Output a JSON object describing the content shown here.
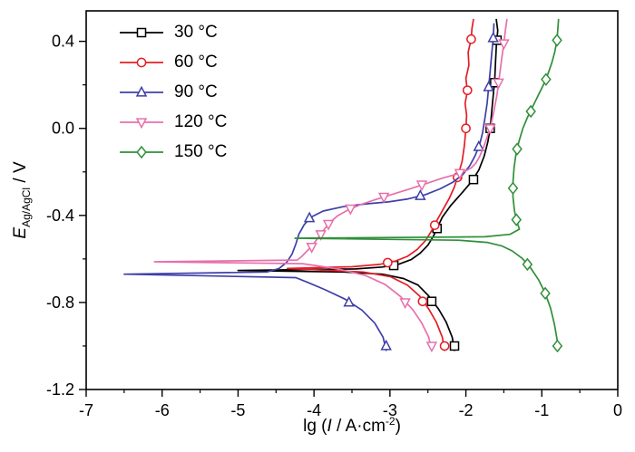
{
  "figure": {
    "background": "#ffffff",
    "frame_color": "#000000"
  },
  "chart_data": {
    "type": "line",
    "title": "",
    "xlabel": "lg (I / A·cm-2)",
    "xlabel_parts": {
      "prefix": "lg (",
      "symbol": "I",
      "mid": " / A·cm",
      "sup": "-2",
      "suffix": ")"
    },
    "ylabel": "E Ag/AgCl / V",
    "ylabel_parts": {
      "symbol": "E",
      "sub": "Ag/AgCl",
      "suffix": " / V"
    },
    "xlim": [
      -7,
      0
    ],
    "ylim": [
      -1.2,
      0.54
    ],
    "x_ticks": [
      -7,
      -6,
      -5,
      -4,
      -3,
      -2,
      -1,
      0
    ],
    "x_tick_labels": [
      "-7",
      "-6",
      "-5",
      "-4",
      "-3",
      "-2",
      "-1",
      "0"
    ],
    "y_ticks": [
      0.4,
      0.0,
      -0.4,
      -0.8,
      -1.2
    ],
    "y_tick_labels": [
      "0.4",
      "0.0",
      "-0.4",
      "-0.8",
      "-1.2"
    ],
    "x_minor_step": 0.5,
    "y_minor_step": 0.2,
    "grid": false,
    "legend_position": "top-left",
    "series": [
      {
        "name": "30 °C",
        "color": "#000000",
        "marker": "square",
        "points": [
          [
            -2.15,
            -1.02
          ],
          [
            -2.18,
            -0.96
          ],
          [
            -2.26,
            -0.89
          ],
          [
            -2.36,
            -0.83
          ],
          [
            -2.49,
            -0.77
          ],
          [
            -2.63,
            -0.72
          ],
          [
            -2.82,
            -0.69
          ],
          [
            -3.1,
            -0.67
          ],
          [
            -3.6,
            -0.66
          ],
          [
            -5.0,
            -0.653
          ],
          [
            -3.45,
            -0.646
          ],
          [
            -3.1,
            -0.637
          ],
          [
            -2.88,
            -0.624
          ],
          [
            -2.72,
            -0.603
          ],
          [
            -2.6,
            -0.573
          ],
          [
            -2.5,
            -0.537
          ],
          [
            -2.43,
            -0.497
          ],
          [
            -2.37,
            -0.452
          ],
          [
            -2.31,
            -0.408
          ],
          [
            -2.2,
            -0.355
          ],
          [
            -2.06,
            -0.3
          ],
          [
            -1.93,
            -0.247
          ],
          [
            -1.83,
            -0.192
          ],
          [
            -1.76,
            -0.128
          ],
          [
            -1.71,
            -0.062
          ],
          [
            -1.68,
            0.0
          ],
          [
            -1.66,
            0.075
          ],
          [
            -1.64,
            0.15
          ],
          [
            -1.62,
            0.225
          ],
          [
            -1.61,
            0.3
          ],
          [
            -1.6,
            0.375
          ],
          [
            -1.58,
            0.45
          ],
          [
            -1.6,
            0.5
          ]
        ],
        "marker_points": [
          [
            -2.15,
            -1.0
          ],
          [
            -2.45,
            -0.795
          ],
          [
            -2.95,
            -0.63
          ],
          [
            -2.38,
            -0.46
          ],
          [
            -1.9,
            -0.235
          ],
          [
            -1.68,
            0.0
          ],
          [
            -1.62,
            0.21
          ],
          [
            -1.59,
            0.405
          ]
        ]
      },
      {
        "name": "60 °C",
        "color": "#e41e26",
        "marker": "circle",
        "points": [
          [
            -2.28,
            -1.02
          ],
          [
            -2.31,
            -0.96
          ],
          [
            -2.39,
            -0.89
          ],
          [
            -2.49,
            -0.83
          ],
          [
            -2.61,
            -0.77
          ],
          [
            -2.77,
            -0.72
          ],
          [
            -2.99,
            -0.682
          ],
          [
            -3.35,
            -0.66
          ],
          [
            -4.35,
            -0.644
          ],
          [
            -3.5,
            -0.636
          ],
          [
            -3.14,
            -0.625
          ],
          [
            -2.93,
            -0.61
          ],
          [
            -2.77,
            -0.588
          ],
          [
            -2.64,
            -0.556
          ],
          [
            -2.53,
            -0.515
          ],
          [
            -2.45,
            -0.47
          ],
          [
            -2.38,
            -0.422
          ],
          [
            -2.3,
            -0.372
          ],
          [
            -2.22,
            -0.322
          ],
          [
            -2.15,
            -0.268
          ],
          [
            -2.1,
            -0.212
          ],
          [
            -2.05,
            -0.152
          ],
          [
            -2.02,
            -0.08
          ],
          [
            -2.0,
            0.0
          ],
          [
            -1.99,
            0.06
          ],
          [
            -2.01,
            0.115
          ],
          [
            -1.98,
            0.17
          ],
          [
            -2.0,
            0.23
          ],
          [
            -1.96,
            0.29
          ],
          [
            -1.97,
            0.35
          ],
          [
            -1.93,
            0.41
          ],
          [
            -1.92,
            0.46
          ],
          [
            -1.9,
            0.5
          ]
        ],
        "marker_points": [
          [
            -2.28,
            -1.0
          ],
          [
            -2.57,
            -0.795
          ],
          [
            -3.03,
            -0.617
          ],
          [
            -2.41,
            -0.445
          ],
          [
            -2.11,
            -0.225
          ],
          [
            -2.0,
            0.0
          ],
          [
            -1.98,
            0.175
          ],
          [
            -1.93,
            0.41
          ]
        ]
      },
      {
        "name": "90 °C",
        "color": "#3f3fa8",
        "marker": "triangle-up",
        "points": [
          [
            -3.05,
            -1.02
          ],
          [
            -3.09,
            -0.96
          ],
          [
            -3.2,
            -0.895
          ],
          [
            -3.37,
            -0.835
          ],
          [
            -3.59,
            -0.785
          ],
          [
            -3.85,
            -0.742
          ],
          [
            -4.08,
            -0.708
          ],
          [
            -4.24,
            -0.686
          ],
          [
            -6.5,
            -0.67
          ],
          [
            -4.62,
            -0.66
          ],
          [
            -4.46,
            -0.644
          ],
          [
            -4.36,
            -0.616
          ],
          [
            -4.29,
            -0.578
          ],
          [
            -4.24,
            -0.532
          ],
          [
            -4.2,
            -0.487
          ],
          [
            -4.13,
            -0.443
          ],
          [
            -4.04,
            -0.408
          ],
          [
            -3.88,
            -0.38
          ],
          [
            -3.62,
            -0.36
          ],
          [
            -3.32,
            -0.347
          ],
          [
            -3.02,
            -0.338
          ],
          [
            -2.76,
            -0.324
          ],
          [
            -2.53,
            -0.304
          ],
          [
            -2.34,
            -0.278
          ],
          [
            -2.17,
            -0.247
          ],
          [
            -2.04,
            -0.212
          ],
          [
            -1.95,
            -0.172
          ],
          [
            -1.88,
            -0.127
          ],
          [
            -1.82,
            -0.077
          ],
          [
            -1.78,
            -0.02
          ],
          [
            -1.75,
            0.045
          ],
          [
            -1.72,
            0.115
          ],
          [
            -1.7,
            0.19
          ],
          [
            -1.68,
            0.265
          ],
          [
            -1.66,
            0.34
          ],
          [
            -1.64,
            0.415
          ],
          [
            -1.63,
            0.48
          ]
        ],
        "marker_points": [
          [
            -3.05,
            -1.0
          ],
          [
            -3.54,
            -0.8
          ],
          [
            -4.06,
            -0.412
          ],
          [
            -2.6,
            -0.31
          ],
          [
            -1.83,
            -0.085
          ],
          [
            -1.7,
            0.19
          ],
          [
            -1.64,
            0.415
          ]
        ]
      },
      {
        "name": "120 °C",
        "color": "#e670ab",
        "marker": "triangle-down",
        "points": [
          [
            -2.45,
            -1.02
          ],
          [
            -2.49,
            -0.96
          ],
          [
            -2.58,
            -0.895
          ],
          [
            -2.7,
            -0.833
          ],
          [
            -2.86,
            -0.773
          ],
          [
            -3.06,
            -0.718
          ],
          [
            -3.33,
            -0.675
          ],
          [
            -3.66,
            -0.648
          ],
          [
            -3.95,
            -0.632
          ],
          [
            -4.15,
            -0.622
          ],
          [
            -6.1,
            -0.613
          ],
          [
            -4.22,
            -0.605
          ],
          [
            -4.16,
            -0.588
          ],
          [
            -4.09,
            -0.563
          ],
          [
            -4.01,
            -0.533
          ],
          [
            -3.94,
            -0.5
          ],
          [
            -3.87,
            -0.466
          ],
          [
            -3.79,
            -0.432
          ],
          [
            -3.69,
            -0.402
          ],
          [
            -3.56,
            -0.376
          ],
          [
            -3.39,
            -0.351
          ],
          [
            -3.19,
            -0.327
          ],
          [
            -2.96,
            -0.302
          ],
          [
            -2.73,
            -0.277
          ],
          [
            -2.51,
            -0.252
          ],
          [
            -2.31,
            -0.229
          ],
          [
            -2.13,
            -0.211
          ],
          [
            -2.01,
            -0.197
          ],
          [
            -1.93,
            -0.182
          ],
          [
            -1.87,
            -0.16
          ],
          [
            -1.82,
            -0.13
          ],
          [
            -1.77,
            -0.09
          ],
          [
            -1.72,
            -0.04
          ],
          [
            -1.67,
            0.015
          ],
          [
            -1.63,
            0.08
          ],
          [
            -1.59,
            0.155
          ],
          [
            -1.56,
            0.235
          ],
          [
            -1.53,
            0.315
          ],
          [
            -1.5,
            0.39
          ],
          [
            -1.48,
            0.45
          ],
          [
            -1.46,
            0.5
          ]
        ],
        "marker_points": [
          [
            -2.45,
            -1.0
          ],
          [
            -2.8,
            -0.8
          ],
          [
            -4.03,
            -0.545
          ],
          [
            -3.91,
            -0.487
          ],
          [
            -3.81,
            -0.44
          ],
          [
            -3.52,
            -0.369
          ],
          [
            -3.08,
            -0.315
          ],
          [
            -2.58,
            -0.259
          ],
          [
            -2.08,
            -0.206
          ],
          [
            -1.68,
            0.0
          ],
          [
            -1.57,
            0.21
          ],
          [
            -1.5,
            0.39
          ]
        ]
      },
      {
        "name": "150 °C",
        "color": "#2f8f39",
        "marker": "diamond",
        "points": [
          [
            -0.78,
            0.5
          ],
          [
            -0.79,
            0.455
          ],
          [
            -0.8,
            0.405
          ],
          [
            -0.83,
            0.35
          ],
          [
            -0.87,
            0.3
          ],
          [
            -0.92,
            0.25
          ],
          [
            -0.98,
            0.2
          ],
          [
            -1.05,
            0.15
          ],
          [
            -1.12,
            0.1
          ],
          [
            -1.19,
            0.05
          ],
          [
            -1.25,
            0.0
          ],
          [
            -1.3,
            -0.058
          ],
          [
            -1.34,
            -0.118
          ],
          [
            -1.365,
            -0.18
          ],
          [
            -1.38,
            -0.248
          ],
          [
            -1.38,
            -0.315
          ],
          [
            -1.36,
            -0.378
          ],
          [
            -1.33,
            -0.428
          ],
          [
            -1.295,
            -0.463
          ],
          [
            -1.42,
            -0.487
          ],
          [
            -1.75,
            -0.498
          ],
          [
            -4.25,
            -0.505
          ],
          [
            -2.1,
            -0.514
          ],
          [
            -1.72,
            -0.524
          ],
          [
            -1.53,
            -0.54
          ],
          [
            -1.39,
            -0.563
          ],
          [
            -1.26,
            -0.597
          ],
          [
            -1.145,
            -0.642
          ],
          [
            -1.04,
            -0.697
          ],
          [
            -0.955,
            -0.758
          ],
          [
            -0.885,
            -0.826
          ],
          [
            -0.835,
            -0.898
          ],
          [
            -0.8,
            -0.968
          ],
          [
            -0.78,
            -1.02
          ]
        ],
        "marker_points": [
          [
            -0.8,
            0.405
          ],
          [
            -0.945,
            0.225
          ],
          [
            -1.145,
            0.078
          ],
          [
            -1.325,
            -0.095
          ],
          [
            -1.38,
            -0.275
          ],
          [
            -1.335,
            -0.42
          ],
          [
            -1.19,
            -0.625
          ],
          [
            -0.955,
            -0.758
          ],
          [
            -0.795,
            -1.0
          ]
        ]
      }
    ]
  }
}
